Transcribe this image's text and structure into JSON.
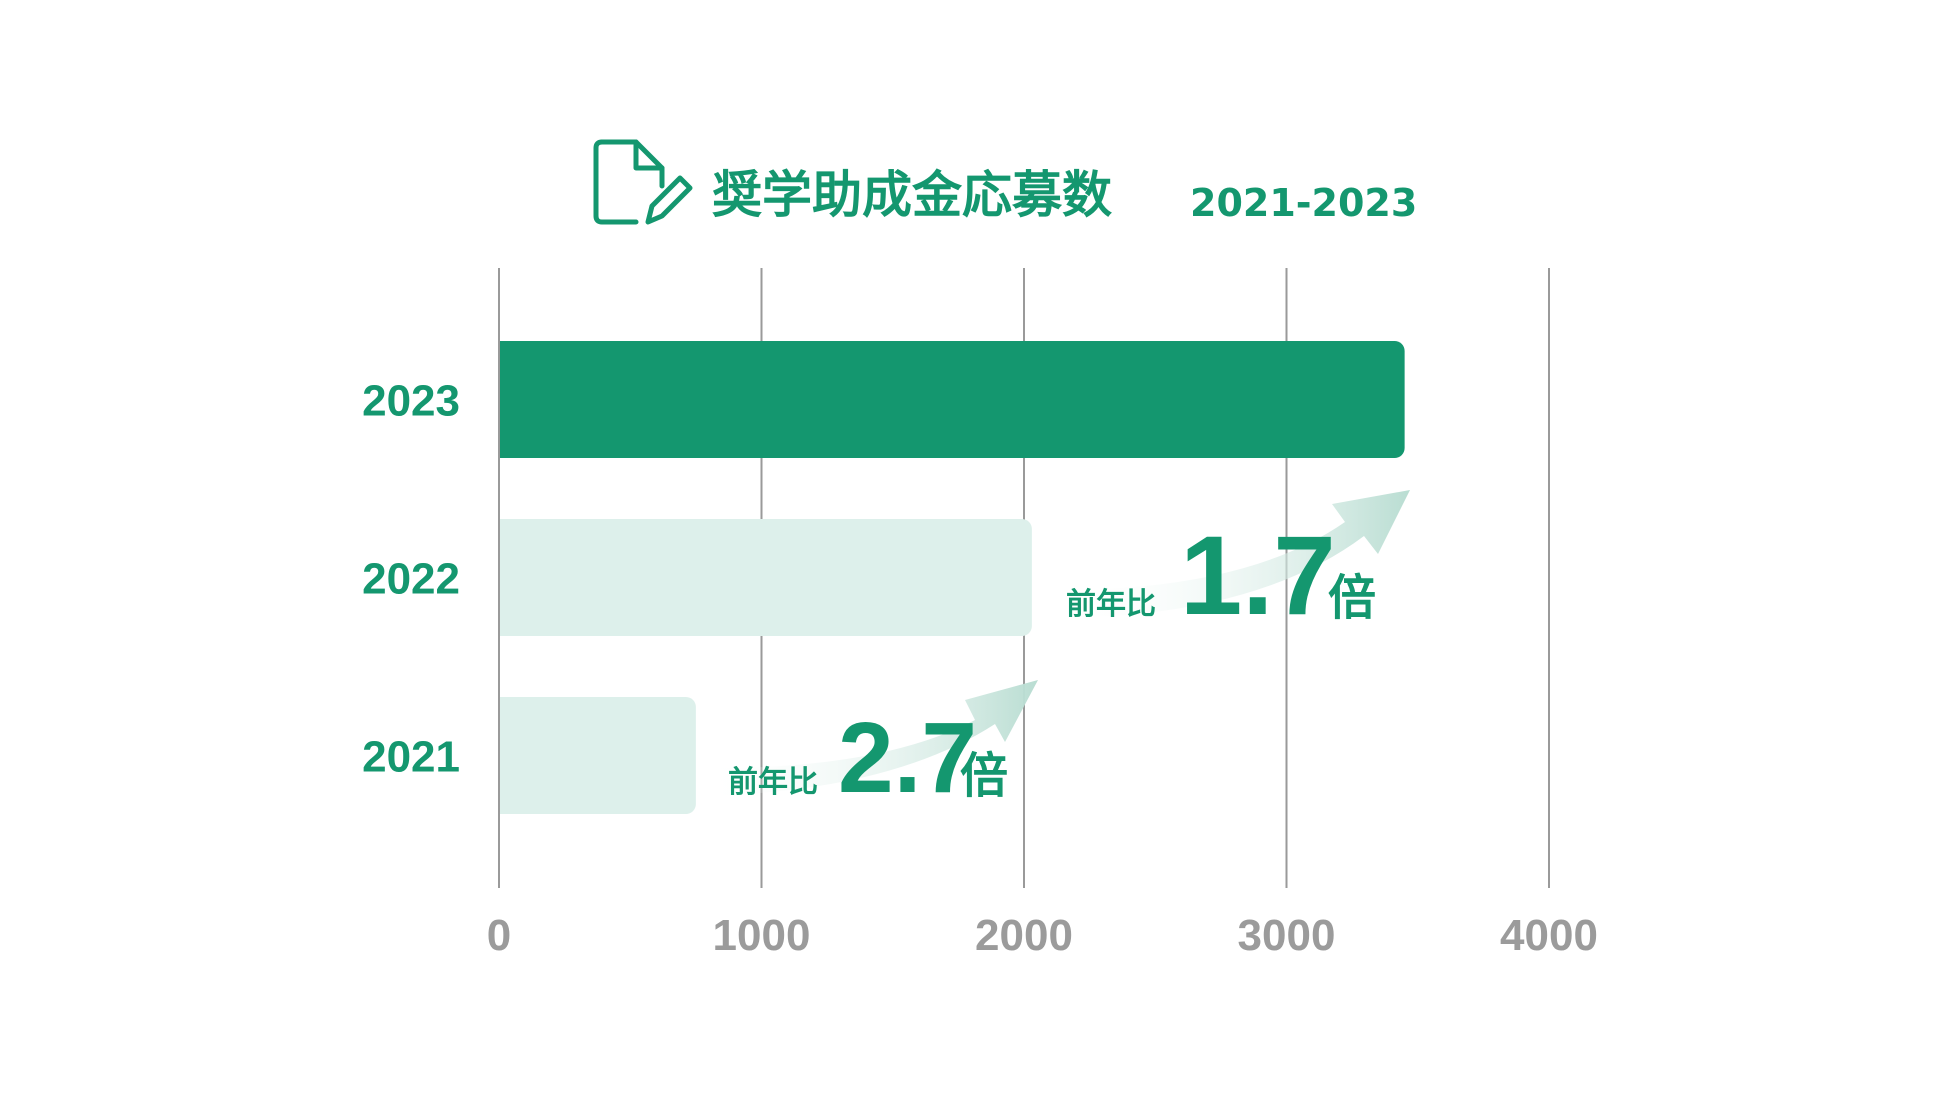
{
  "colors": {
    "accent": "#14976F",
    "bar_light": "#DDF0EB",
    "grid": "#9A9A9A",
    "tick": "#9B9B9B",
    "arrow": "#B9DDD2"
  },
  "icon": "document-edit-icon",
  "chart_data": {
    "type": "bar",
    "orientation": "horizontal",
    "title": "奨学助成金応募数",
    "subtitle": "2021-2023",
    "categories": [
      "2023",
      "2022",
      "2021"
    ],
    "values": [
      3450,
      2030,
      750
    ],
    "highlight": "2023",
    "xlim": [
      0,
      4000
    ],
    "xticks": [
      "0",
      "1000",
      "2000",
      "3000",
      "4000"
    ],
    "grid": true,
    "annotations": [
      {
        "prefix": "前年比",
        "value": "2.7",
        "suffix": "倍",
        "from": "2021",
        "to": "2022"
      },
      {
        "prefix": "前年比",
        "value": "1.7",
        "suffix": "倍",
        "from": "2022",
        "to": "2023"
      }
    ]
  }
}
